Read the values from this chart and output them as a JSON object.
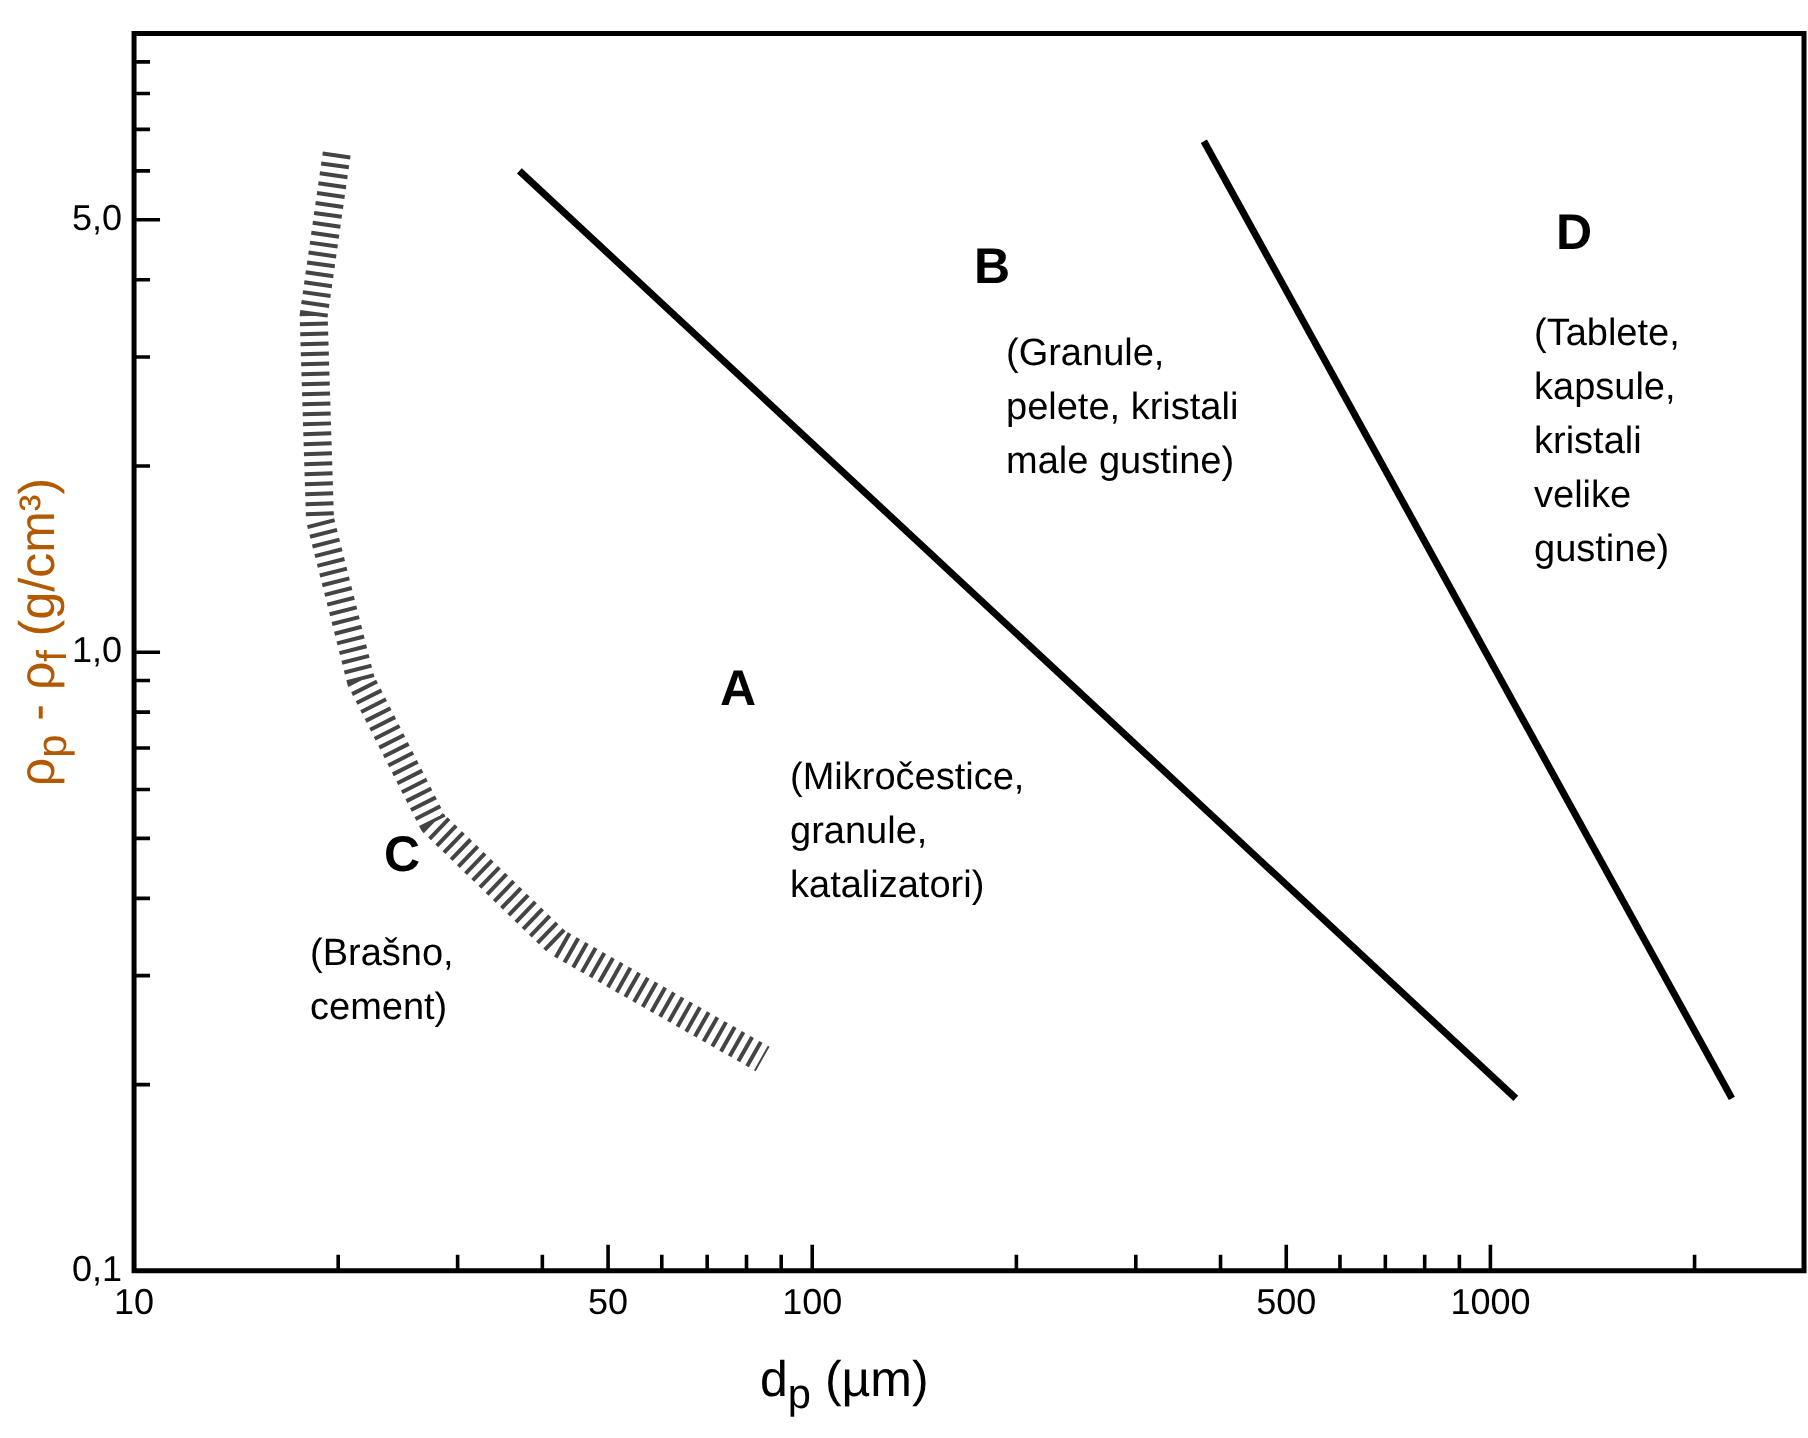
{
  "chart_data": {
    "type": "line",
    "xlabel": "d$_{p}$ (µm)",
    "ylabel": "ρ$_{p}$ - ρ$_{f}$ (g/cm³)",
    "log": "xy",
    "grid": false,
    "legend": false,
    "marker": "none",
    "xlim": [
      10,
      2900
    ],
    "ylim": [
      0.1,
      10
    ],
    "xticks": [
      10,
      {
        "value": 20,
        "label": null
      },
      {
        "value": 30,
        "label": null
      },
      {
        "value": 40,
        "label": null
      },
      50,
      {
        "value": 60,
        "label": null
      },
      {
        "value": 70,
        "label": null
      },
      {
        "value": 80,
        "label": null
      },
      {
        "value": 90,
        "label": null
      },
      100,
      {
        "value": 200,
        "label": null
      },
      {
        "value": 300,
        "label": null
      },
      {
        "value": 400,
        "label": null
      },
      500,
      {
        "value": 600,
        "label": null
      },
      {
        "value": 700,
        "label": null
      },
      {
        "value": 800,
        "label": null
      },
      {
        "value": 900,
        "label": null
      },
      1000,
      {
        "value": 2000,
        "label": null
      }
    ],
    "yticks": [
      {
        "value": 0.1,
        "label": "0,1"
      },
      {
        "value": 0.2,
        "label": null
      },
      {
        "value": 0.3,
        "label": null
      },
      {
        "value": 0.4,
        "label": null
      },
      {
        "value": 0.5,
        "label": null
      },
      {
        "value": 0.6,
        "label": null
      },
      {
        "value": 0.7,
        "label": null
      },
      {
        "value": 0.8,
        "label": null
      },
      {
        "value": 0.9,
        "label": null
      },
      {
        "value": 1,
        "label": "1,0"
      },
      {
        "value": 2,
        "label": null
      },
      {
        "value": 3,
        "label": null
      },
      {
        "value": 4,
        "label": null
      },
      {
        "value": 5,
        "label": "5,0"
      },
      {
        "value": 6,
        "label": null
      },
      {
        "value": 7,
        "label": null
      },
      {
        "value": 8,
        "label": null
      },
      {
        "value": 9,
        "label": null
      }
    ],
    "series": [
      {
        "color": "#000000",
        "x": [
          37,
          1090
        ],
        "values": [
          6.0,
          0.19
        ],
        "line_style": "solid"
      },
      {
        "color": "#000000",
        "x": [
          378,
          2270
        ],
        "values": [
          6.7,
          0.19
        ],
        "line_style": "solid"
      },
      {
        "color": "#444444",
        "x": [
          19.9,
          18.4,
          18.8,
          21.6,
          27.6,
          42,
          84.5
        ],
        "values": [
          6.4,
          3.5,
          1.64,
          0.9,
          0.53,
          0.34,
          0.22
        ],
        "line_style": "dashed"
      }
    ],
    "annotations": [
      "A",
      "(Mikročestice,\ngranule,\nkatalizatori)",
      "B",
      "(Granule,\npelete, kristali\nmale gustine)",
      "C",
      "(Brašno,\ncement)",
      "D",
      "(Tablete,\nkapsule,\nkristali\nvelike\ngustine)"
    ]
  }
}
